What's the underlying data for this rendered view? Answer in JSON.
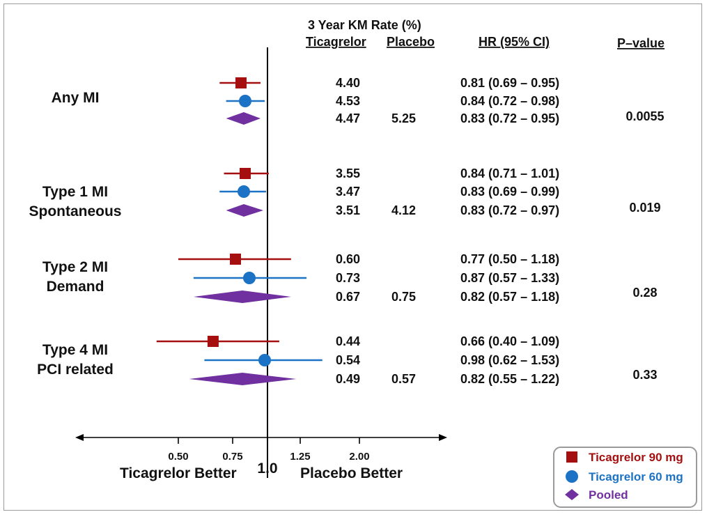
{
  "colors": {
    "ticagrelor_90": "#a50f0f",
    "ticagrelor_60": "#1c72c4",
    "pooled": "#7030a0",
    "axis": "#000000"
  },
  "headers": {
    "km_title": "3 Year KM Rate (%)",
    "ticagrelor": "Ticagrelor",
    "placebo": "Placebo",
    "hr": "HR (95% CI)",
    "pvalue": "P–value"
  },
  "axis": {
    "tick_labels": [
      "0.50",
      "0.75",
      "1.0",
      "1.25",
      "2.00"
    ],
    "left_caption": "Ticagrelor Better",
    "right_caption": "Placebo Better"
  },
  "legend": {
    "items": [
      {
        "label": "Ticagrelor 90 mg",
        "marker": "square",
        "color": "#a50f0f"
      },
      {
        "label": "Ticagrelor 60 mg",
        "marker": "circle",
        "color": "#1c72c4"
      },
      {
        "label": "Pooled",
        "marker": "diamond",
        "color": "#7030a0"
      }
    ]
  },
  "chart_data": {
    "type": "forest",
    "title": "",
    "xlabel_left": "Ticagrelor Better",
    "xlabel_right": "Placebo Better",
    "xticks": [
      "0.50",
      "0.75",
      "1.0",
      "1.25",
      "2.00"
    ],
    "reference_line": 1.0,
    "series": [
      {
        "name": "Ticagrelor 90 mg"
      },
      {
        "name": "Ticagrelor 60 mg"
      },
      {
        "name": "Pooled"
      }
    ],
    "groups": [
      {
        "label_lines": [
          "Any MI"
        ],
        "rows": [
          {
            "series": "Ticagrelor 90 mg",
            "ticagrelor_rate": "4.40",
            "placebo_rate": "",
            "hr": 0.81,
            "lo": 0.69,
            "hi": 0.95,
            "hr_text": "0.81 (0.69 – 0.95)"
          },
          {
            "series": "Ticagrelor 60 mg",
            "ticagrelor_rate": "4.53",
            "placebo_rate": "",
            "hr": 0.84,
            "lo": 0.72,
            "hi": 0.98,
            "hr_text": "0.84 (0.72 – 0.98)"
          },
          {
            "series": "Pooled",
            "ticagrelor_rate": "4.47",
            "placebo_rate": "5.25",
            "hr": 0.83,
            "lo": 0.72,
            "hi": 0.95,
            "hr_text": "0.83 (0.72 – 0.95)"
          }
        ],
        "p_value": "0.0055"
      },
      {
        "label_lines": [
          "Type 1 MI",
          "Spontaneous"
        ],
        "rows": [
          {
            "series": "Ticagrelor 90 mg",
            "ticagrelor_rate": "3.55",
            "placebo_rate": "",
            "hr": 0.84,
            "lo": 0.71,
            "hi": 1.01,
            "hr_text": "0.84 (0.71 –  1.01)"
          },
          {
            "series": "Ticagrelor 60 mg",
            "ticagrelor_rate": "3.47",
            "placebo_rate": "",
            "hr": 0.83,
            "lo": 0.69,
            "hi": 0.99,
            "hr_text": "0.83 (0.69 –  0.99)"
          },
          {
            "series": "Pooled",
            "ticagrelor_rate": "3.51",
            "placebo_rate": "4.12",
            "hr": 0.83,
            "lo": 0.72,
            "hi": 0.97,
            "hr_text": "0.83 (0.72 –  0.97)"
          }
        ],
        "p_value": "0.019"
      },
      {
        "label_lines": [
          "Type 2 MI",
          "Demand"
        ],
        "rows": [
          {
            "series": "Ticagrelor 90 mg",
            "ticagrelor_rate": "0.60",
            "placebo_rate": "",
            "hr": 0.77,
            "lo": 0.5,
            "hi": 1.18,
            "hr_text": "0.77 (0.50 –  1.18)"
          },
          {
            "series": "Ticagrelor 60 mg",
            "ticagrelor_rate": "0.73",
            "placebo_rate": "",
            "hr": 0.87,
            "lo": 0.57,
            "hi": 1.33,
            "hr_text": "0.87 (0.57 –  1.33)"
          },
          {
            "series": "Pooled",
            "ticagrelor_rate": "0.67",
            "placebo_rate": "0.75",
            "hr": 0.82,
            "lo": 0.57,
            "hi": 1.18,
            "hr_text": "0.82 (0.57 –  1.18)"
          }
        ],
        "p_value": "0.28"
      },
      {
        "label_lines": [
          "Type 4 MI",
          "PCI related"
        ],
        "rows": [
          {
            "series": "Ticagrelor 90 mg",
            "ticagrelor_rate": "0.44",
            "placebo_rate": "",
            "hr": 0.66,
            "lo": 0.4,
            "hi": 1.09,
            "hr_text": "0.66 (0.40 –  1.09)"
          },
          {
            "series": "Ticagrelor 60 mg",
            "ticagrelor_rate": "0.54",
            "placebo_rate": "",
            "hr": 0.98,
            "lo": 0.62,
            "hi": 1.53,
            "hr_text": "0.98 (0.62 –  1.53)"
          },
          {
            "series": "Pooled",
            "ticagrelor_rate": "0.49",
            "placebo_rate": "0.57",
            "hr": 0.82,
            "lo": 0.55,
            "hi": 1.22,
            "hr_text": "0.82 (0.55 –  1.22)"
          }
        ],
        "p_value": "0.33"
      }
    ]
  }
}
